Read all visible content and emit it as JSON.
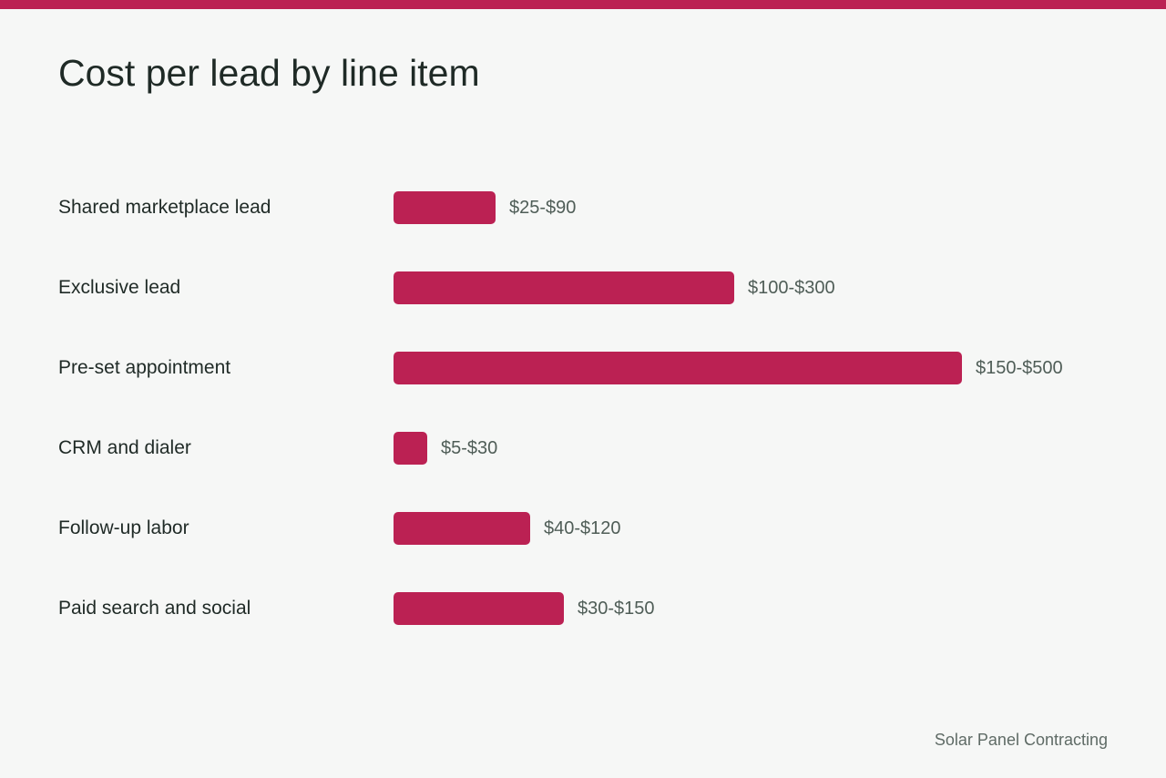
{
  "colors": {
    "accent": "#bb2153",
    "background": "#f6f7f6",
    "text": "#1f2a26",
    "muted_text": "#4f5d57"
  },
  "footer": {
    "text": "Solar Panel Contracting"
  },
  "chart_data": {
    "type": "bar",
    "orientation": "horizontal",
    "title": "Cost per lead by line item",
    "xlabel": "",
    "ylabel": "",
    "grid": false,
    "legend": "none",
    "xlim": [
      0,
      500
    ],
    "categories": [
      "Shared marketplace lead",
      "Exclusive lead",
      "Pre-set appointment",
      "CRM and dialer",
      "Follow-up labor",
      "Paid search and social"
    ],
    "values": [
      90,
      300,
      500,
      30,
      120,
      150
    ],
    "ranges": [
      [
        25,
        90
      ],
      [
        100,
        300
      ],
      [
        150,
        500
      ],
      [
        5,
        30
      ],
      [
        40,
        120
      ],
      [
        30,
        150
      ]
    ],
    "data_labels": [
      "$25-$90",
      "$100-$300",
      "$150-$500",
      "$5-$30",
      "$40-$120",
      "$30-$150"
    ]
  }
}
